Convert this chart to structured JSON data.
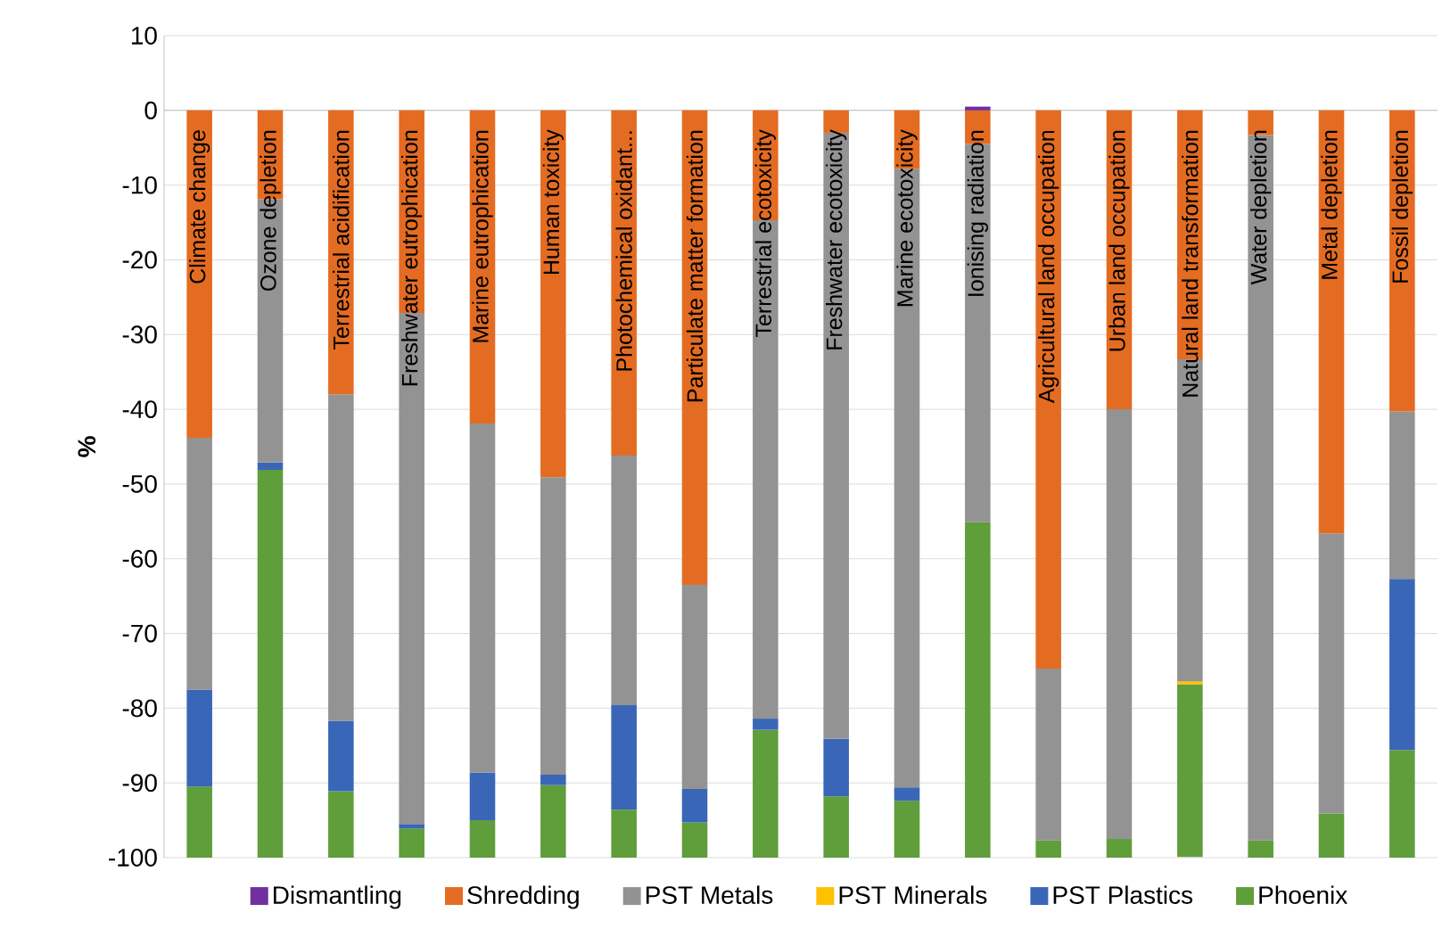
{
  "chart_data": {
    "type": "bar",
    "stacked": true,
    "ylabel": "%",
    "categories": [
      "Climate change",
      "Ozone depletion",
      "Terrestrial acidification",
      "Freshwater eutrophication",
      "Marine eutrophication",
      "Human toxicity",
      "Photochemical oxidant...",
      "Particulate matter formation",
      "Terrestrial ecotoxicity",
      "Freshwater ecotoxicity",
      "Marine ecotoxicity",
      "Ionising radiation",
      "Agricultural land occupation",
      "Urban land occupation",
      "Natural land transformation",
      "Water depletion",
      "Metal depletion",
      "Fossil depletion"
    ],
    "series": [
      {
        "name": "Dismantling",
        "color": "#7030a0",
        "values": [
          0,
          0,
          0,
          0,
          0,
          0,
          0,
          0,
          0,
          0,
          0,
          0.5,
          0,
          0,
          0,
          0,
          0,
          0
        ]
      },
      {
        "name": "Shredding",
        "color": "#e46c22",
        "values": [
          -43.8,
          -11.9,
          -38.0,
          -27.1,
          -41.9,
          -49.1,
          -46.2,
          -63.5,
          -14.7,
          -3.0,
          -7.8,
          -4.5,
          -74.7,
          -40.0,
          -33.3,
          -3.3,
          -56.6,
          -40.3
        ]
      },
      {
        "name": "PST Metals",
        "color": "#939393",
        "values": [
          -33.7,
          -35.2,
          -43.7,
          -68.4,
          -46.7,
          -39.8,
          -33.4,
          -27.3,
          -66.7,
          -81.1,
          -82.8,
          -50.6,
          -23.0,
          -57.5,
          -43.1,
          -94.4,
          -37.5,
          -22.4
        ]
      },
      {
        "name": "PST Minerals",
        "color": "#ffc000",
        "values": [
          0,
          0,
          0,
          0,
          0,
          0,
          0,
          0,
          0,
          0,
          0,
          0,
          0,
          0,
          -0.4,
          0,
          0,
          0
        ]
      },
      {
        "name": "PST Plastics",
        "color": "#3a66b8",
        "values": [
          -13.0,
          -1.0,
          -9.4,
          -0.6,
          -6.4,
          -1.4,
          -14.0,
          -4.5,
          -1.5,
          -7.7,
          -1.8,
          0,
          0,
          0,
          0,
          0,
          0,
          -22.9
        ]
      },
      {
        "name": "Phoenix",
        "color": "#5f9e3a",
        "values": [
          -9.5,
          -51.9,
          -8.9,
          -3.9,
          -5.0,
          -9.7,
          -6.4,
          -4.7,
          -17.1,
          -8.2,
          -7.6,
          -44.9,
          -2.3,
          -2.5,
          -23.1,
          -2.3,
          -5.9,
          -14.4
        ]
      }
    ],
    "ylim": [
      -100,
      10
    ],
    "yticks": [
      10,
      0,
      -10,
      -20,
      -30,
      -40,
      -50,
      -60,
      -70,
      -80,
      -90,
      -100
    ],
    "grid": "y",
    "legend": "bottom"
  }
}
